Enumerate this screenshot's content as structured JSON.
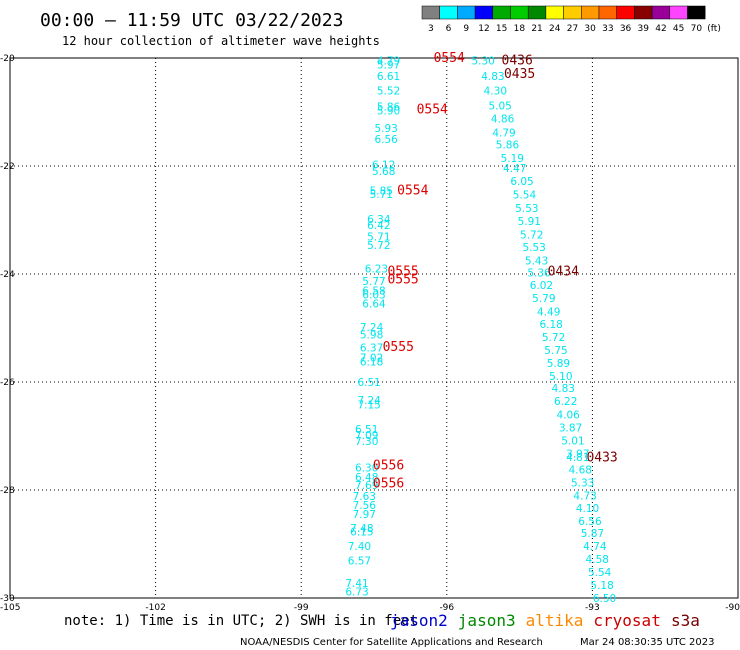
{
  "chart_data": {
    "type": "scatter",
    "title": "00:00 – 11:59 UTC 03/22/2023",
    "subtitle": "12 hour collection of altimeter wave heights",
    "xlim": [
      -105,
      -90
    ],
    "ylim": [
      -30,
      -20
    ],
    "x_ticks": [
      "-105",
      "-102",
      "-99",
      "-96",
      "-93",
      "-90"
    ],
    "y_ticks": [
      "-20",
      "-22",
      "-24",
      "-26",
      "-28",
      "-30"
    ],
    "grid": true,
    "colorbar": {
      "labels": [
        "3",
        "6",
        "9",
        "12",
        "15",
        "18",
        "21",
        "24",
        "27",
        "30",
        "33",
        "36",
        "39",
        "42",
        "45",
        "70",
        "(ft)"
      ],
      "colors": [
        "#808080",
        "#00ffff",
        "#00aaff",
        "#0000ff",
        "#00aa00",
        "#00cc00",
        "#008800",
        "#ffff00",
        "#ffcc00",
        "#ff9900",
        "#ff6600",
        "#ff0000",
        "#880000",
        "#990099",
        "#ff44ff",
        "#000000"
      ]
    },
    "wave_color": "#00e5ee",
    "series": [
      {
        "name": "cryosat",
        "color": "#00e5ee",
        "points": [
          {
            "lon": -97.2,
            "lat": -20.05,
            "v": "4.79"
          },
          {
            "lon": -97.2,
            "lat": -20.12,
            "v": "5.97"
          },
          {
            "lon": -97.2,
            "lat": -20.33,
            "v": "6.61"
          },
          {
            "lon": -97.2,
            "lat": -20.6,
            "v": "5.52"
          },
          {
            "lon": -97.2,
            "lat": -20.9,
            "v": "5.86"
          },
          {
            "lon": -97.2,
            "lat": -20.97,
            "v": "5.90"
          },
          {
            "lon": -97.25,
            "lat": -21.3,
            "v": "5.93"
          },
          {
            "lon": -97.25,
            "lat": -21.5,
            "v": "6.56"
          },
          {
            "lon": -97.3,
            "lat": -21.97,
            "v": "6.12"
          },
          {
            "lon": -97.3,
            "lat": -22.09,
            "v": "5.68"
          },
          {
            "lon": -97.35,
            "lat": -22.45,
            "v": "5.85"
          },
          {
            "lon": -97.35,
            "lat": -22.52,
            "v": "5.71"
          },
          {
            "lon": -97.4,
            "lat": -22.98,
            "v": "6.34"
          },
          {
            "lon": -97.4,
            "lat": -23.09,
            "v": "6.42"
          },
          {
            "lon": -97.4,
            "lat": -23.31,
            "v": "5.71"
          },
          {
            "lon": -97.4,
            "lat": -23.46,
            "v": "5.72"
          },
          {
            "lon": -97.45,
            "lat": -23.9,
            "v": "6.23"
          },
          {
            "lon": -97.5,
            "lat": -24.13,
            "v": "5.77"
          },
          {
            "lon": -97.5,
            "lat": -24.31,
            "v": "6.58"
          },
          {
            "lon": -97.5,
            "lat": -24.38,
            "v": "6.03"
          },
          {
            "lon": -97.5,
            "lat": -24.55,
            "v": "6.64"
          },
          {
            "lon": -97.55,
            "lat": -24.98,
            "v": "7.24"
          },
          {
            "lon": -97.55,
            "lat": -25.12,
            "v": "5.98"
          },
          {
            "lon": -97.55,
            "lat": -25.36,
            "v": "6.37"
          },
          {
            "lon": -97.55,
            "lat": -25.55,
            "v": "7.02"
          },
          {
            "lon": -97.55,
            "lat": -25.62,
            "v": "6.18"
          },
          {
            "lon": -97.6,
            "lat": -26.0,
            "v": "6.51"
          },
          {
            "lon": -97.6,
            "lat": -26.33,
            "v": "7.24"
          },
          {
            "lon": -97.6,
            "lat": -26.42,
            "v": "7.15"
          },
          {
            "lon": -97.65,
            "lat": -26.87,
            "v": "6.51"
          },
          {
            "lon": -97.65,
            "lat": -26.98,
            "v": "7.09"
          },
          {
            "lon": -97.65,
            "lat": -27.09,
            "v": "7.30"
          },
          {
            "lon": -97.65,
            "lat": -27.58,
            "v": "6.30"
          },
          {
            "lon": -97.65,
            "lat": -27.76,
            "v": "6.48"
          },
          {
            "lon": -97.65,
            "lat": -27.91,
            "v": "7.69"
          },
          {
            "lon": -97.7,
            "lat": -28.11,
            "v": "7.63"
          },
          {
            "lon": -97.7,
            "lat": -28.28,
            "v": "7.56"
          },
          {
            "lon": -97.7,
            "lat": -28.44,
            "v": "7.97"
          },
          {
            "lon": -97.75,
            "lat": -28.7,
            "v": "7.48"
          },
          {
            "lon": -97.75,
            "lat": -28.77,
            "v": "6.15"
          },
          {
            "lon": -97.8,
            "lat": -29.04,
            "v": "7.40"
          },
          {
            "lon": -97.8,
            "lat": -29.31,
            "v": "6.57"
          },
          {
            "lon": -97.85,
            "lat": -29.72,
            "v": "7.41"
          },
          {
            "lon": -97.85,
            "lat": -29.88,
            "v": "6.73"
          }
        ]
      },
      {
        "name": "s3a",
        "color": "#00e5ee",
        "points": [
          {
            "lon": -95.25,
            "lat": -20.05,
            "v": "5.30"
          },
          {
            "lon": -95.05,
            "lat": -20.33,
            "v": "4.83"
          },
          {
            "lon": -95.0,
            "lat": -20.6,
            "v": "4.30"
          },
          {
            "lon": -94.9,
            "lat": -20.88,
            "v": "5.05"
          },
          {
            "lon": -94.85,
            "lat": -21.12,
            "v": "4.86"
          },
          {
            "lon": -94.82,
            "lat": -21.38,
            "v": "4.79"
          },
          {
            "lon": -94.75,
            "lat": -21.6,
            "v": "5.86"
          },
          {
            "lon": -94.65,
            "lat": -21.85,
            "v": "5.19"
          },
          {
            "lon": -94.6,
            "lat": -22.04,
            "v": "4.47"
          },
          {
            "lon": -94.45,
            "lat": -22.28,
            "v": "6.05"
          },
          {
            "lon": -94.4,
            "lat": -22.53,
            "v": "5.54"
          },
          {
            "lon": -94.35,
            "lat": -22.78,
            "v": "5.53"
          },
          {
            "lon": -94.3,
            "lat": -23.02,
            "v": "5.91"
          },
          {
            "lon": -94.25,
            "lat": -23.27,
            "v": "5.72"
          },
          {
            "lon": -94.2,
            "lat": -23.5,
            "v": "5.53"
          },
          {
            "lon": -94.15,
            "lat": -23.75,
            "v": "5.43"
          },
          {
            "lon": -94.1,
            "lat": -23.97,
            "v": "5.36"
          },
          {
            "lon": -94.05,
            "lat": -24.2,
            "v": "6.02"
          },
          {
            "lon": -94.0,
            "lat": -24.44,
            "v": "5.79"
          },
          {
            "lon": -93.9,
            "lat": -24.69,
            "v": "4.49"
          },
          {
            "lon": -93.85,
            "lat": -24.93,
            "v": "6.18"
          },
          {
            "lon": -93.8,
            "lat": -25.17,
            "v": "5.72"
          },
          {
            "lon": -93.75,
            "lat": -25.41,
            "v": "5.75"
          },
          {
            "lon": -93.7,
            "lat": -25.65,
            "v": "5.89"
          },
          {
            "lon": -93.65,
            "lat": -25.89,
            "v": "5.10"
          },
          {
            "lon": -93.6,
            "lat": -26.11,
            "v": "4.83"
          },
          {
            "lon": -93.55,
            "lat": -26.35,
            "v": "6.22"
          },
          {
            "lon": -93.5,
            "lat": -26.6,
            "v": "4.06"
          },
          {
            "lon": -93.45,
            "lat": -26.84,
            "v": "3.87"
          },
          {
            "lon": -93.4,
            "lat": -27.08,
            "v": "5.01"
          },
          {
            "lon": -93.3,
            "lat": -27.32,
            "v": "3.97"
          },
          {
            "lon": -93.3,
            "lat": -27.39,
            "v": "4.81"
          },
          {
            "lon": -93.25,
            "lat": -27.62,
            "v": "4.68"
          },
          {
            "lon": -93.2,
            "lat": -27.86,
            "v": "5.33"
          },
          {
            "lon": -93.15,
            "lat": -28.1,
            "v": "4.73"
          },
          {
            "lon": -93.1,
            "lat": -28.33,
            "v": "4.10"
          },
          {
            "lon": -93.05,
            "lat": -28.57,
            "v": "6.56"
          },
          {
            "lon": -93.0,
            "lat": -28.8,
            "v": "5.87"
          },
          {
            "lon": -92.95,
            "lat": -29.04,
            "v": "4.74"
          },
          {
            "lon": -92.9,
            "lat": -29.28,
            "v": "4.58"
          },
          {
            "lon": -92.85,
            "lat": -29.52,
            "v": "5.54"
          },
          {
            "lon": -92.8,
            "lat": -29.76,
            "v": "5.18"
          },
          {
            "lon": -92.75,
            "lat": -30.0,
            "v": "6.50"
          }
        ]
      }
    ],
    "time_labels": [
      {
        "lon": -95.95,
        "lat": -20.0,
        "v": "0554",
        "color": "#dd0000"
      },
      {
        "lon": -96.3,
        "lat": -20.95,
        "v": "0554",
        "color": "#dd0000"
      },
      {
        "lon": -96.7,
        "lat": -22.45,
        "v": "0554",
        "color": "#dd0000"
      },
      {
        "lon": -96.9,
        "lat": -23.95,
        "v": "0555",
        "color": "#dd0000"
      },
      {
        "lon": -96.9,
        "lat": -24.1,
        "v": "0555",
        "color": "#dd0000"
      },
      {
        "lon": -97.0,
        "lat": -25.35,
        "v": "0555",
        "color": "#dd0000"
      },
      {
        "lon": -97.2,
        "lat": -27.55,
        "v": "0556",
        "color": "#dd0000"
      },
      {
        "lon": -97.2,
        "lat": -27.88,
        "v": "0556",
        "color": "#dd0000"
      },
      {
        "lon": -94.55,
        "lat": -20.05,
        "v": "0436",
        "color": "#7a0000"
      },
      {
        "lon": -94.5,
        "lat": -20.3,
        "v": "0435",
        "color": "#7a0000"
      },
      {
        "lon": -93.6,
        "lat": -23.95,
        "v": "0434",
        "color": "#7a0000"
      },
      {
        "lon": -92.8,
        "lat": -27.4,
        "v": "0433",
        "color": "#7a0000"
      }
    ],
    "note": "note: 1) Time is in UTC; 2) SWH is in feet",
    "missions": [
      {
        "name": "jason2",
        "color": "#0000cc"
      },
      {
        "name": "jason3",
        "color": "#008800"
      },
      {
        "name": "altika",
        "color": "#ff8800"
      },
      {
        "name": "cryosat",
        "color": "#cc0000"
      },
      {
        "name": "s3a",
        "color": "#770000"
      }
    ],
    "credit": "NOAA/NESDIS Center for Satellite Applications and Research",
    "timestamp": "Mar 24 08:30:35 UTC 2023"
  }
}
